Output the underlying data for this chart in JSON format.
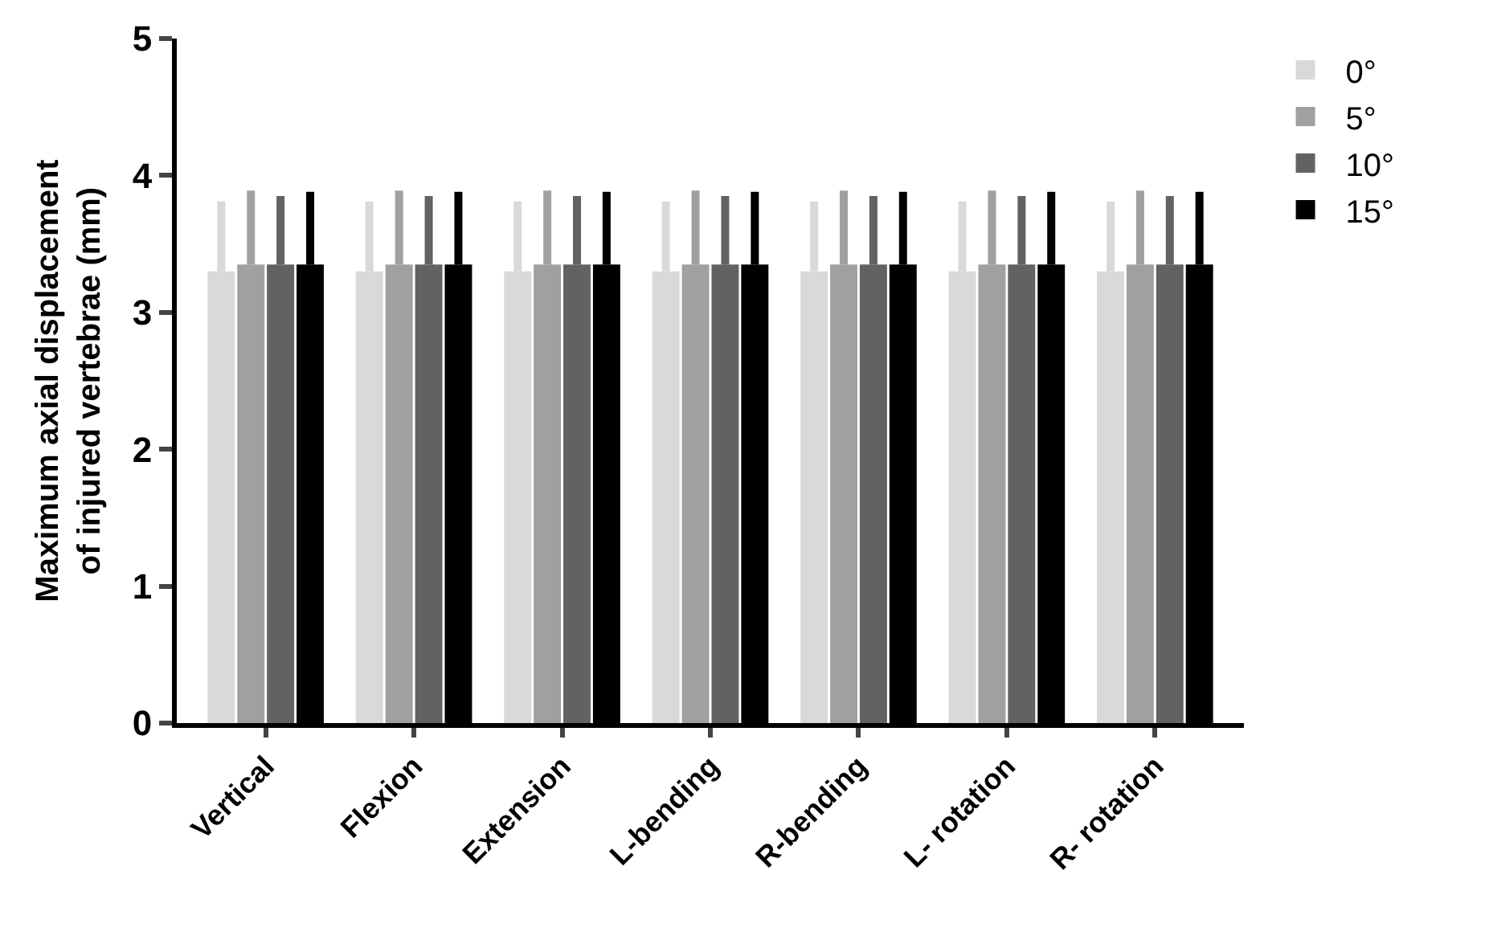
{
  "chart_data": {
    "type": "bar",
    "ylabel": "Maximum axial displacement\nof injured vertebrae (mm)",
    "categories": [
      "Vertical",
      "Flexion",
      "Extension",
      "L-bending",
      "R-bending",
      "L- rotation",
      "R- rotation"
    ],
    "series": [
      {
        "name": "0°",
        "color": "#d9d9d9",
        "values": [
          3.3,
          3.3,
          3.3,
          3.3,
          3.3,
          3.3,
          3.3
        ],
        "errors": [
          [
            3.3,
            3.81
          ],
          [
            3.3,
            3.81
          ],
          [
            3.3,
            3.81
          ],
          [
            3.3,
            3.81
          ],
          [
            3.3,
            3.81
          ],
          [
            3.3,
            3.81
          ],
          [
            3.3,
            3.81
          ]
        ]
      },
      {
        "name": "5°",
        "color": "#a0a0a3",
        "values": [
          3.35,
          3.35,
          3.35,
          3.35,
          3.35,
          3.35,
          3.35
        ],
        "errors": [
          [
            3.35,
            3.89
          ],
          [
            3.35,
            3.89
          ],
          [
            3.35,
            3.89
          ],
          [
            3.35,
            3.89
          ],
          [
            3.35,
            3.89
          ],
          [
            3.35,
            3.89
          ],
          [
            3.35,
            3.89
          ]
        ]
      },
      {
        "name": "10°",
        "color": "#626262",
        "values": [
          3.35,
          3.35,
          3.35,
          3.35,
          3.35,
          3.35,
          3.35
        ],
        "errors": [
          [
            3.35,
            3.85
          ],
          [
            3.35,
            3.85
          ],
          [
            3.35,
            3.85
          ],
          [
            3.35,
            3.85
          ],
          [
            3.35,
            3.85
          ],
          [
            3.35,
            3.85
          ],
          [
            3.35,
            3.85
          ]
        ]
      },
      {
        "name": "15°",
        "color": "#000000",
        "values": [
          3.35,
          3.35,
          3.35,
          3.35,
          3.35,
          3.35,
          3.35
        ],
        "errors": [
          [
            3.35,
            3.88
          ],
          [
            3.35,
            3.88
          ],
          [
            3.35,
            3.88
          ],
          [
            3.35,
            3.88
          ],
          [
            3.35,
            3.88
          ],
          [
            3.35,
            3.88
          ],
          [
            3.35,
            3.88
          ]
        ]
      }
    ],
    "ylim": [
      0,
      5
    ],
    "yticks": [
      0,
      1,
      2,
      3,
      4,
      5
    ],
    "legend": "top right"
  }
}
